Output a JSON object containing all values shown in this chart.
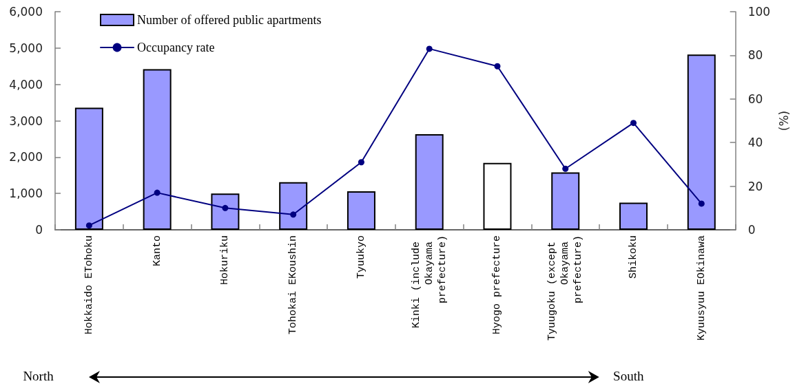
{
  "chart_data": {
    "type": "bar",
    "categories": [
      "Hokkaido ETohoku",
      "Kanto",
      "Hokuriku",
      "Tohokai EKoushin",
      "Tyuukyo",
      "Kinki (include Okayama prefecture)",
      "Hyogo prefecture",
      "Tyuugoku (except Okayama prefecture)",
      "Shikoku",
      "Kyuusyuu EOkinawa"
    ],
    "series": [
      {
        "name": "Number of offered public apartments",
        "color": "#9999ff",
        "colors": [
          "#9999ff",
          "#9999ff",
          "#9999ff",
          "#9999ff",
          "#9999ff",
          "#9999ff",
          "#ffffff",
          "#9999ff",
          "#9999ff",
          "#9999ff"
        ],
        "values": [
          3360,
          4420,
          1000,
          1310,
          1060,
          2630,
          1840,
          1580,
          750,
          4820
        ]
      },
      {
        "name": "Occupancy rate",
        "type": "line",
        "color": "#000080",
        "axis": "y2",
        "values": [
          2,
          17,
          10,
          7,
          31,
          83,
          75,
          28,
          49,
          12
        ]
      }
    ],
    "ylim": [
      0,
      6000
    ],
    "yticks": [
      0,
      {
        "value": 1000,
        "label": "1,000"
      },
      {
        "value": 2000,
        "label": "2,000"
      },
      {
        "value": 3000,
        "label": "3,000"
      },
      {
        "value": 4000,
        "label": "4,000"
      },
      {
        "value": 5000,
        "label": "5,000"
      },
      {
        "value": 6000,
        "label": "6,000"
      }
    ],
    "y2lim": [
      0,
      100
    ],
    "y2ticks": [
      0,
      20,
      40,
      60,
      80,
      100
    ],
    "y2label": "(%)",
    "annotations": [
      "North",
      "South"
    ],
    "legend": "top left",
    "grid": false,
    "marker": "circle",
    "line_style": "solid"
  }
}
